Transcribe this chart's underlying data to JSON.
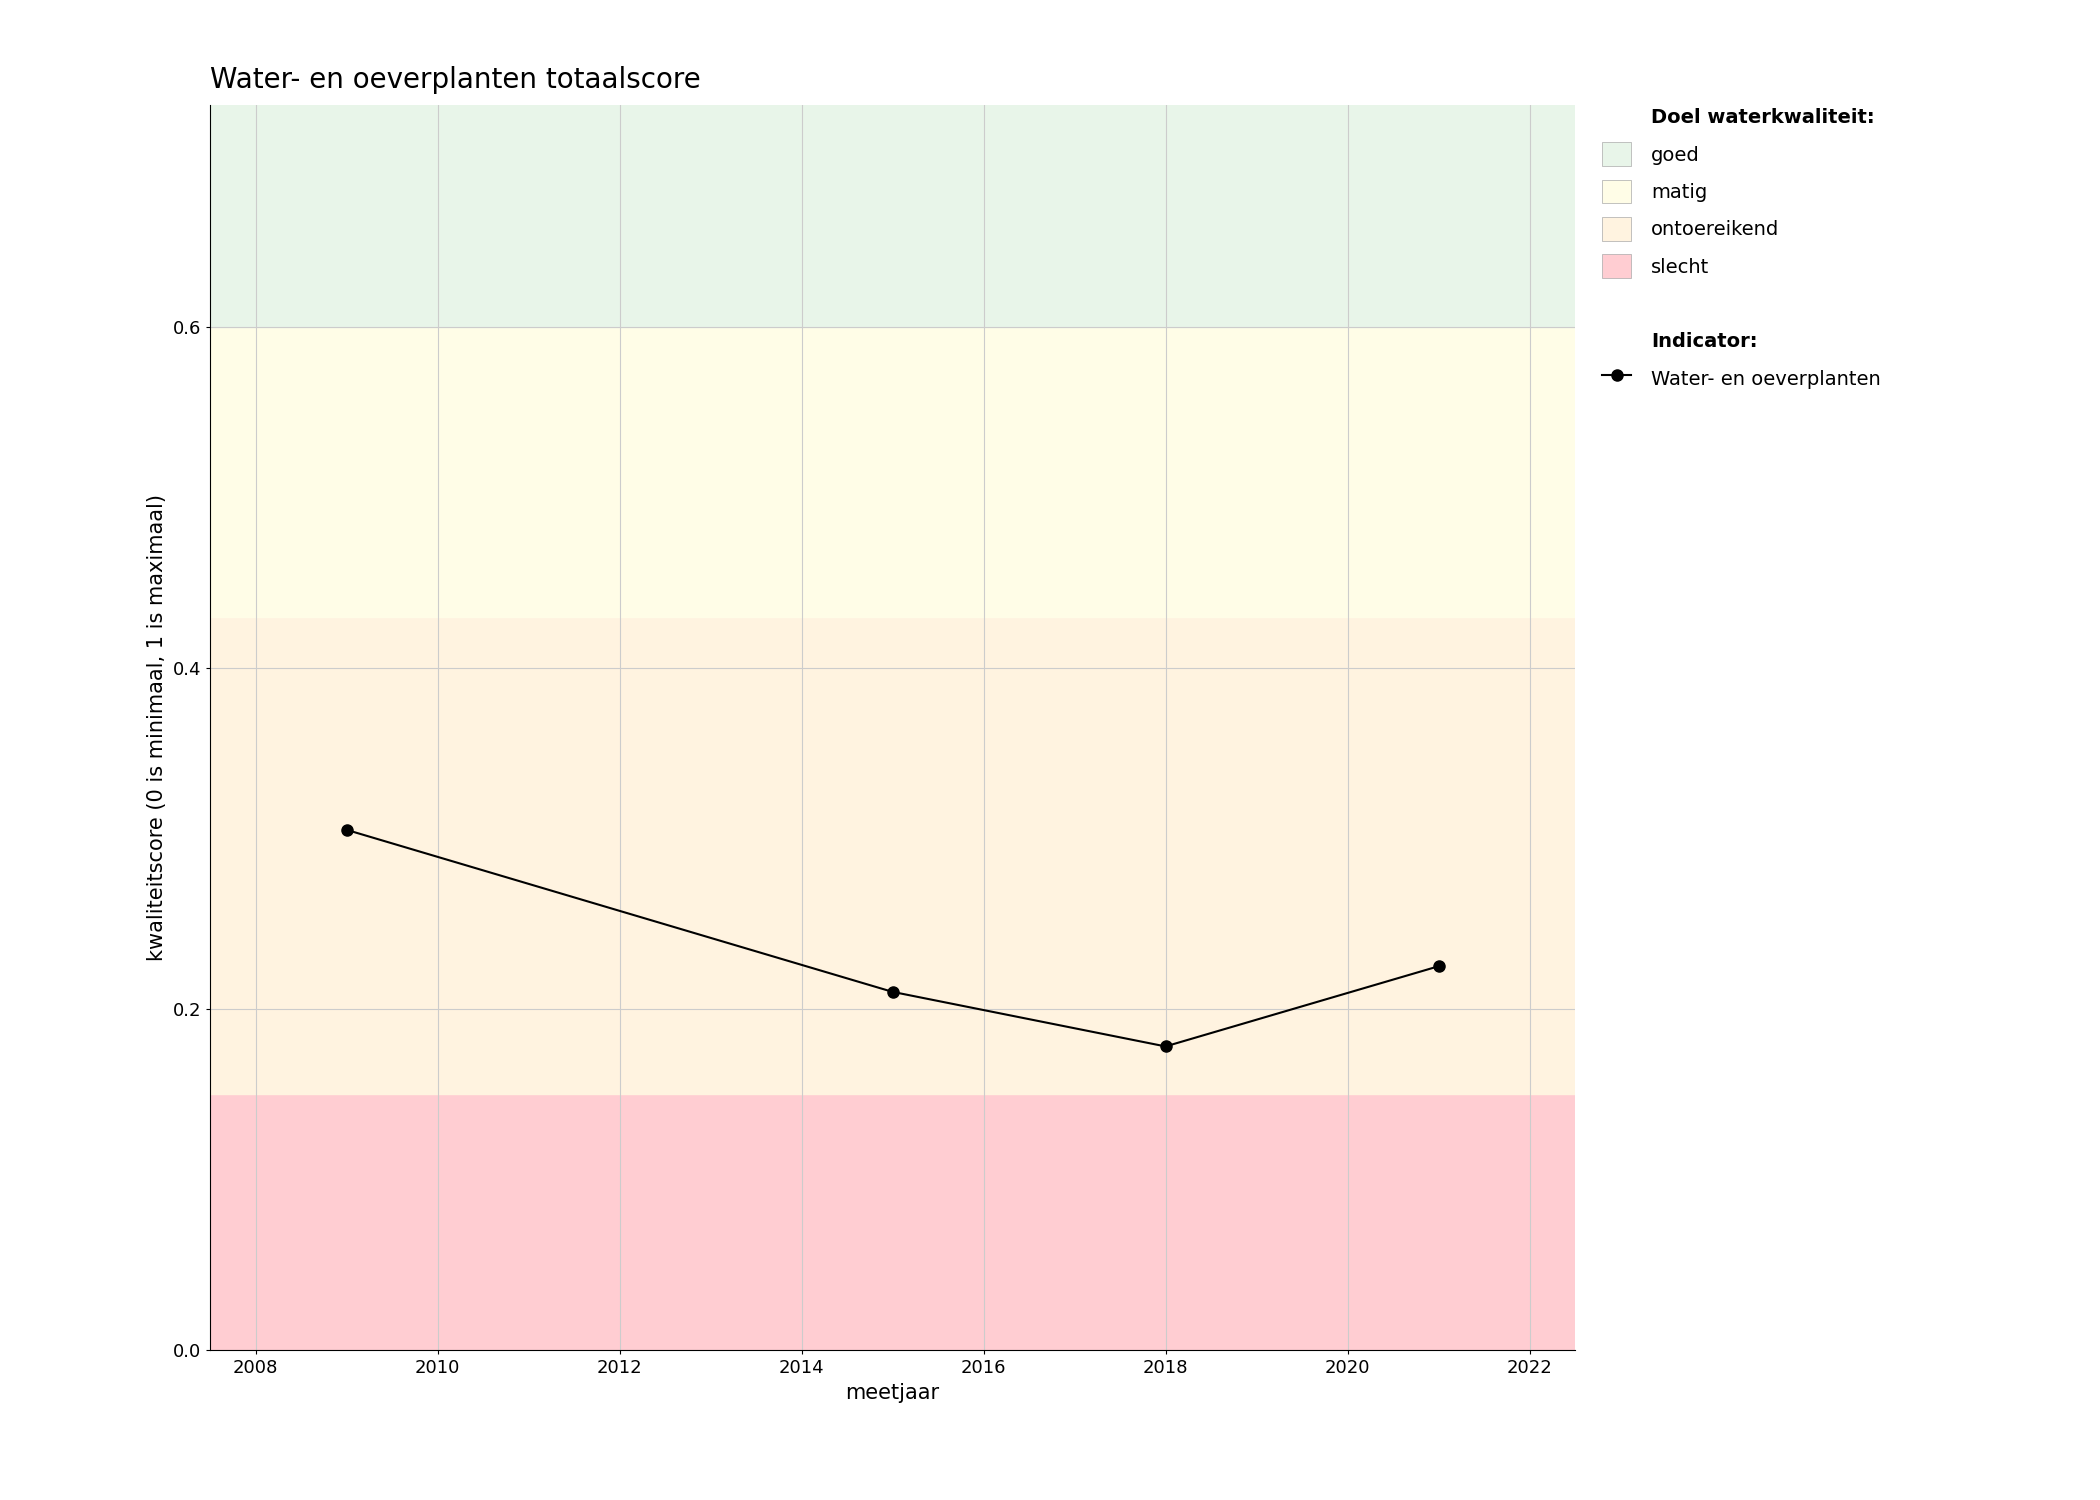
{
  "title": "Water- en oeverplanten totaalscore",
  "xlabel": "meetjaar",
  "ylabel": "kwaliteitscore (0 is minimaal, 1 is maximaal)",
  "xlim": [
    2007.5,
    2022.5
  ],
  "ylim": [
    0,
    0.73
  ],
  "yticks": [
    0.0,
    0.2,
    0.4,
    0.6
  ],
  "xticks": [
    2008,
    2010,
    2012,
    2014,
    2016,
    2018,
    2020,
    2022
  ],
  "data_x": [
    2009,
    2015,
    2018,
    2021
  ],
  "data_y": [
    0.305,
    0.21,
    0.178,
    0.225
  ],
  "zones": [
    {
      "ymin": 0.0,
      "ymax": 0.15,
      "color": "#FFCDD2",
      "label": "slecht"
    },
    {
      "ymin": 0.15,
      "ymax": 0.43,
      "color": "#FFF3E0",
      "label": "ontoereikend"
    },
    {
      "ymin": 0.43,
      "ymax": 0.6,
      "color": "#FFFDE7",
      "label": "matig"
    },
    {
      "ymin": 0.6,
      "ymax": 0.73,
      "color": "#E8F5E9",
      "label": "goed"
    }
  ],
  "legend_title_zones": "Doel waterkwaliteit:",
  "legend_title_indicator": "Indicator:",
  "legend_indicator_label": "Water- en oeverplanten",
  "line_color": "#000000",
  "marker_color": "#000000",
  "marker_size": 8,
  "line_width": 1.5,
  "background_color": "#FFFFFF",
  "grid_color": "#CCCCCC",
  "title_fontsize": 20,
  "label_fontsize": 15,
  "tick_fontsize": 13,
  "legend_fontsize": 14
}
